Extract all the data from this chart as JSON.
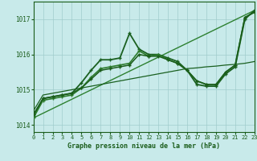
{
  "xlabel": "Graphe pression niveau de la mer (hPa)",
  "background_color": "#c8eaea",
  "grid_color": "#a0cccc",
  "line_color_dark": "#1a5c1a",
  "xlim": [
    0,
    23
  ],
  "ylim": [
    1013.8,
    1017.5
  ],
  "yticks": [
    1014,
    1015,
    1016,
    1017
  ],
  "xticks": [
    0,
    1,
    2,
    3,
    4,
    5,
    6,
    7,
    8,
    9,
    10,
    11,
    12,
    13,
    14,
    15,
    16,
    17,
    18,
    19,
    20,
    21,
    22,
    23
  ],
  "lines": [
    {
      "x": [
        0,
        1,
        2,
        3,
        4,
        5,
        6,
        7,
        8,
        9,
        10,
        11,
        12,
        13,
        14,
        15,
        16,
        17,
        18,
        19,
        20,
        21,
        22,
        23
      ],
      "y": [
        1014.25,
        1014.75,
        1014.8,
        1014.85,
        1014.9,
        1015.2,
        1015.55,
        1015.85,
        1015.85,
        1015.9,
        1016.6,
        1016.15,
        1016.0,
        1016.0,
        1015.9,
        1015.8,
        1015.55,
        1015.15,
        1015.1,
        1015.1,
        1015.45,
        1015.65,
        1017.0,
        1017.25
      ],
      "color": "#1a6020",
      "lw": 1.3,
      "marker": "+"
    },
    {
      "x": [
        0,
        1,
        2,
        3,
        4,
        5,
        6,
        7,
        8,
        9,
        10,
        11,
        12,
        13,
        14,
        15,
        16,
        17,
        18,
        19,
        20,
        21,
        22,
        23
      ],
      "y": [
        1014.2,
        1014.7,
        1014.75,
        1014.8,
        1014.85,
        1015.05,
        1015.35,
        1015.6,
        1015.65,
        1015.7,
        1015.75,
        1016.1,
        1015.95,
        1016.0,
        1015.85,
        1015.75,
        1015.55,
        1015.25,
        1015.15,
        1015.15,
        1015.5,
        1015.7,
        1017.05,
        1017.2
      ],
      "color": "#2d7c2d",
      "lw": 1.2,
      "marker": "+"
    },
    {
      "x": [
        0,
        1,
        2,
        3,
        4,
        5,
        6,
        7,
        8,
        9,
        10,
        11,
        12,
        13,
        14,
        15,
        16,
        17,
        18,
        19,
        20,
        21,
        22,
        23
      ],
      "y": [
        1014.3,
        1014.75,
        1014.8,
        1014.85,
        1014.9,
        1015.05,
        1015.3,
        1015.55,
        1015.6,
        1015.65,
        1015.7,
        1016.0,
        1015.95,
        1015.95,
        1015.85,
        1015.75,
        1015.55,
        1015.25,
        1015.15,
        1015.15,
        1015.5,
        1015.7,
        1017.05,
        1017.2
      ],
      "color": "#1a5c1a",
      "lw": 1.1,
      "marker": "+"
    },
    {
      "x": [
        0,
        23
      ],
      "y": [
        1014.2,
        1017.25
      ],
      "color": "#2d8030",
      "lw": 1.0,
      "marker": null
    },
    {
      "x": [
        0,
        1,
        2,
        3,
        4,
        5,
        6,
        7,
        8,
        9,
        10,
        11,
        12,
        13,
        14,
        15,
        16,
        17,
        18,
        19,
        20,
        21,
        22,
        23
      ],
      "y": [
        1014.4,
        1014.85,
        1014.9,
        1014.95,
        1015.0,
        1015.05,
        1015.1,
        1015.15,
        1015.2,
        1015.25,
        1015.3,
        1015.35,
        1015.4,
        1015.45,
        1015.5,
        1015.55,
        1015.6,
        1015.62,
        1015.65,
        1015.67,
        1015.7,
        1015.72,
        1015.75,
        1015.8
      ],
      "color": "#1a6020",
      "lw": 0.9,
      "marker": null
    }
  ]
}
